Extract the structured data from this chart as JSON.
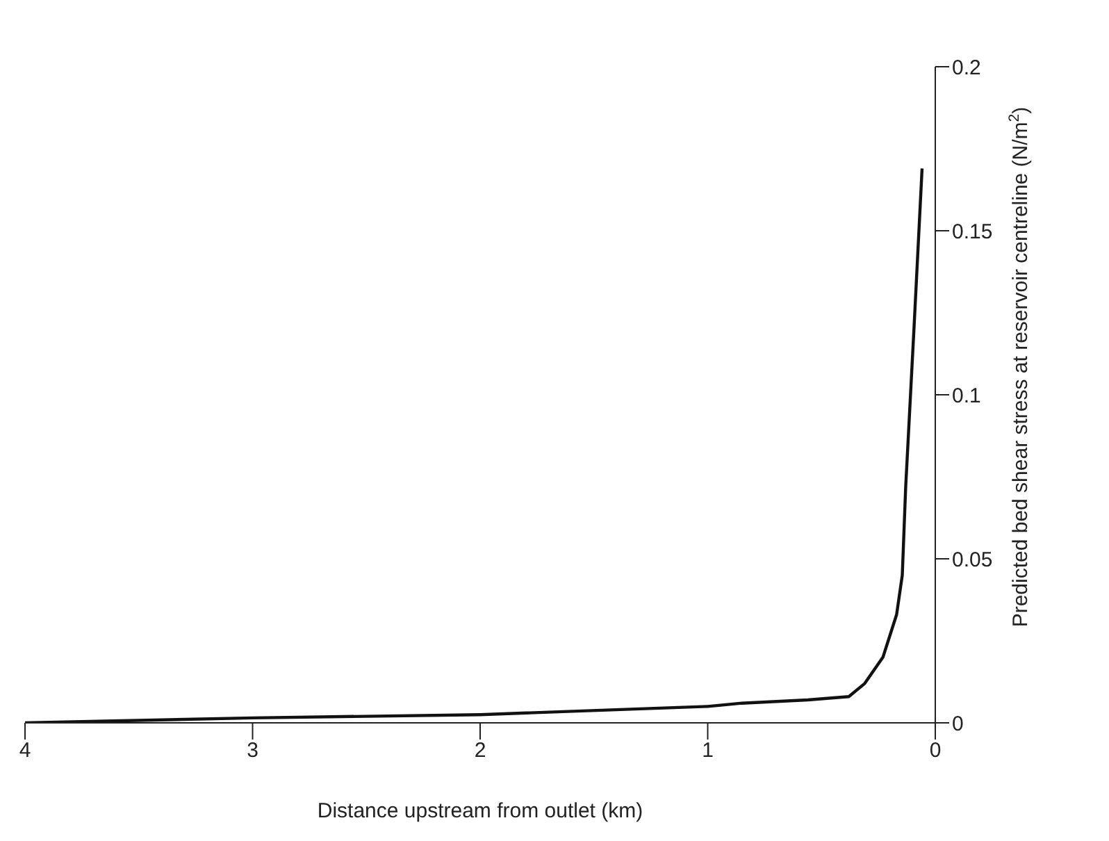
{
  "chart_data": {
    "type": "line",
    "xlabel": "Distance upstream from outlet (km)",
    "ylabel": "Predicted bed shear stress at reservoir centreline (N/m$^{2}$)",
    "x": [
      4,
      3,
      2,
      1,
      0.85,
      0.56,
      0.38,
      0.31,
      0.23,
      0.17,
      0.145,
      0.13,
      0.093,
      0.058
    ],
    "series": [
      {
        "color": "#111111",
        "values": [
          0,
          0.0015,
          0.0025,
          0.005,
          0.006,
          0.007,
          0.008,
          0.012,
          0.02,
          0.033,
          0.045,
          0.072,
          0.121,
          0.169
        ]
      }
    ],
    "xlim": [
      4,
      0
    ],
    "xticks": [
      4,
      3,
      2,
      1,
      0
    ],
    "ylim": [
      0,
      0.2
    ],
    "yticks": [
      0,
      0.05,
      0.1,
      0.15,
      0.2
    ],
    "grid": false,
    "legend": false,
    "marker": "none",
    "line_style": "solid"
  }
}
